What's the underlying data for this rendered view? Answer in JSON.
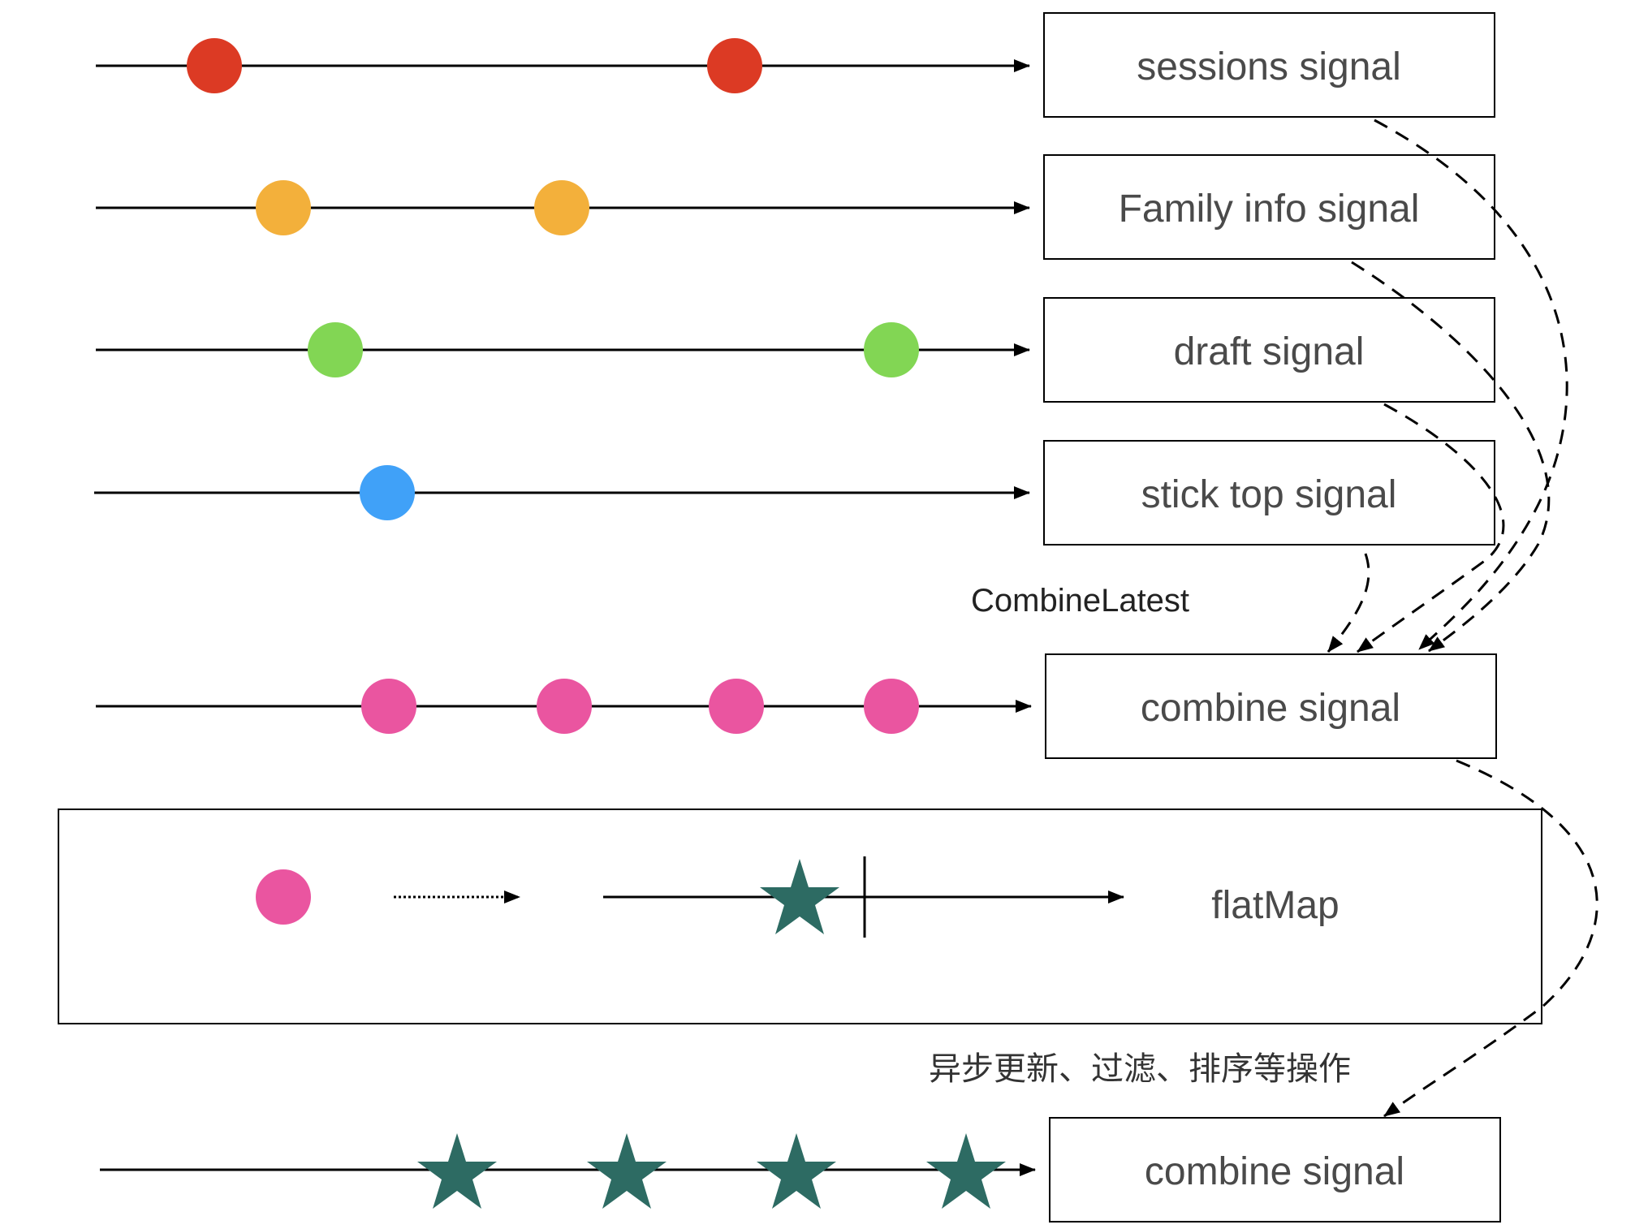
{
  "signals": [
    {
      "label": "sessions signal",
      "marble_color": "#dc3a24",
      "marble_count": 2
    },
    {
      "label": "Family info signal",
      "marble_color": "#f3b03b",
      "marble_count": 2
    },
    {
      "label": "draft signal",
      "marble_color": "#82d654",
      "marble_count": 2
    },
    {
      "label": "stick top signal",
      "marble_color": "#40a1f8",
      "marble_count": 1
    }
  ],
  "combine_latest_label": "CombineLatest",
  "combined": {
    "label": "combine signal",
    "marble_color": "#ea55a0",
    "marble_count": 4
  },
  "flatmap": {
    "label": "flatMap",
    "input_marble_color": "#ea55a0",
    "star_color": "#2d6b63"
  },
  "async_note": "异步更新、过滤、排序等操作",
  "output": {
    "label": "combine signal",
    "star_color": "#2d6b63",
    "star_count": 4
  },
  "colors": {
    "line": "#000000",
    "box_border": "#000000",
    "text": "#4a4a4a"
  }
}
